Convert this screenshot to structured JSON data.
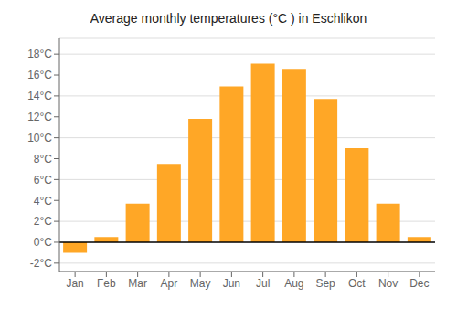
{
  "chart_data": {
    "type": "bar",
    "title": "Average monthly temperatures (°C ) in Eschlikon",
    "categories": [
      "Jan",
      "Feb",
      "Mar",
      "Apr",
      "May",
      "Jun",
      "Jul",
      "Aug",
      "Sep",
      "Oct",
      "Nov",
      "Dec"
    ],
    "values": [
      -1.0,
      0.5,
      3.7,
      7.5,
      11.8,
      14.9,
      17.1,
      16.5,
      13.7,
      9.0,
      3.7,
      0.5
    ],
    "color": "#FFA726",
    "ylim": [
      -2.8,
      19.5
    ],
    "yticks": [
      {
        "value": -2,
        "label": "-2°C"
      },
      {
        "value": 0,
        "label": "0°C"
      },
      {
        "value": 2,
        "label": "2°C"
      },
      {
        "value": 4,
        "label": "4°C"
      },
      {
        "value": 6,
        "label": "6°C"
      },
      {
        "value": 8,
        "label": "8°C"
      },
      {
        "value": 10,
        "label": "10°C"
      },
      {
        "value": 12,
        "label": "12°C"
      },
      {
        "value": 14,
        "label": "14°C"
      },
      {
        "value": 16,
        "label": "16°C"
      },
      {
        "value": 18,
        "label": "18°C"
      }
    ],
    "grid": true
  }
}
